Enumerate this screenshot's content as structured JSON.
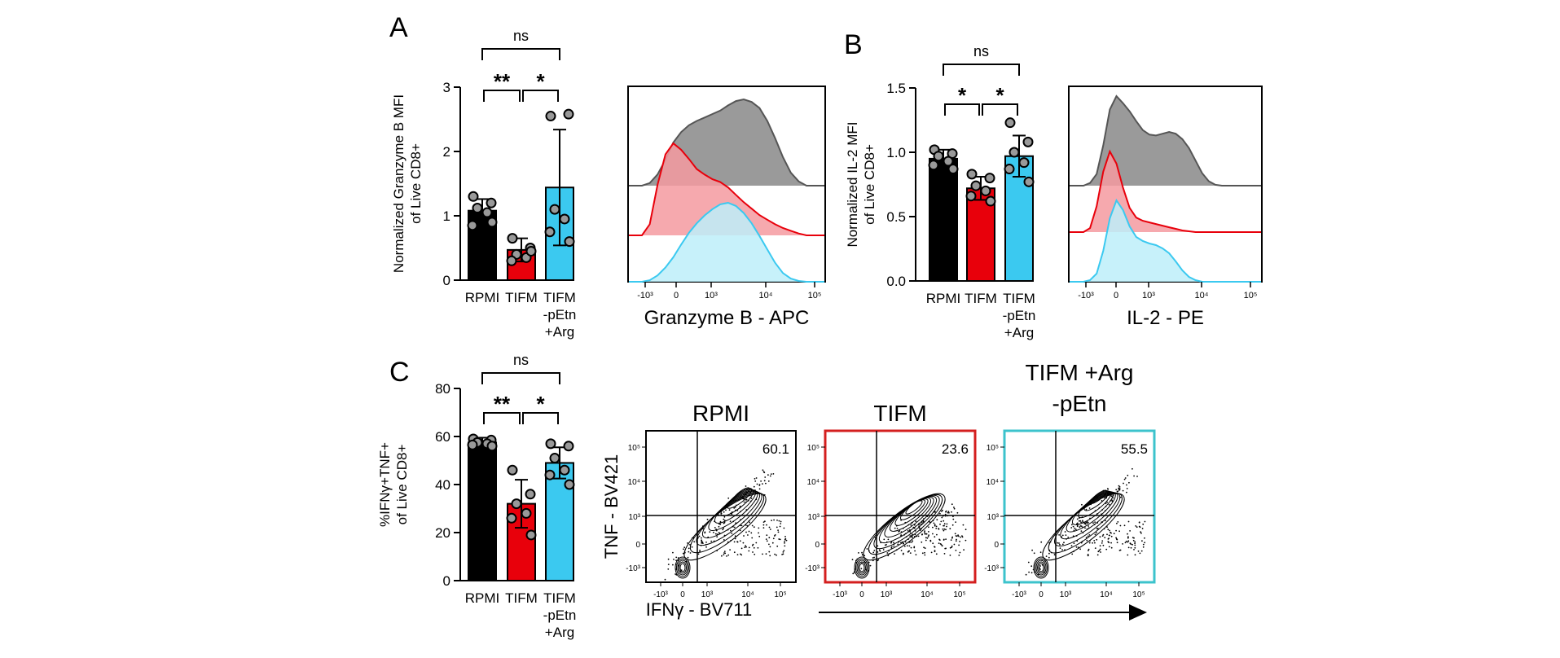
{
  "panels": {
    "A": {
      "letter": "A"
    },
    "B": {
      "letter": "B"
    },
    "C": {
      "letter": "C"
    }
  },
  "chart_data": [
    {
      "type": "bar",
      "panel": "A",
      "ylabel": [
        "Normalized Granzyme B MFI",
        "of Live CD8+"
      ],
      "ylim": [
        0,
        3
      ],
      "yticks": [
        "0",
        "1",
        "2",
        "3"
      ],
      "yticks_values": [
        0,
        1,
        2,
        3
      ],
      "categories": [
        [
          "RPMI"
        ],
        [
          "TIFM"
        ],
        [
          "TIFM",
          "-pEtn",
          "+Arg"
        ]
      ],
      "values": [
        1.08,
        0.47,
        1.44
      ],
      "errors": [
        0.18,
        0.18,
        0.9
      ],
      "colors": [
        "#000000",
        "#e8000b",
        "#3bc9f0"
      ],
      "points": [
        [
          1.3,
          1.2,
          1.12,
          1.05,
          0.85,
          0.9
        ],
        [
          0.65,
          0.5,
          0.4,
          0.35,
          0.3,
          0.45
        ],
        [
          2.55,
          2.58,
          1.1,
          0.95,
          0.75,
          0.6
        ]
      ],
      "brackets": [
        {
          "from": 0,
          "to": 1,
          "label": "**"
        },
        {
          "from": 1,
          "to": 2,
          "label": "*"
        },
        {
          "from": 0,
          "to": 2,
          "label": "ns"
        }
      ]
    },
    {
      "type": "area",
      "panel": "A",
      "xlabel": "Granzyme B - APC",
      "xticks": [
        "-10³",
        "0",
        "10³",
        "10⁴",
        "10⁵"
      ],
      "series": [
        {
          "color": "#555555",
          "fill": "#888888",
          "values": [
            0.0,
            0.03,
            0.13,
            0.3,
            0.5,
            0.62,
            0.7,
            0.75,
            0.79,
            0.83,
            0.87,
            0.93,
            0.98,
            1.0,
            0.97,
            0.9,
            0.75,
            0.55,
            0.33,
            0.15,
            0.05,
            0.0
          ]
        },
        {
          "color": "#e8000b",
          "fill": "#f49aa0",
          "values": [
            0.0,
            0.12,
            0.55,
            0.88,
            1.0,
            0.93,
            0.83,
            0.72,
            0.66,
            0.61,
            0.58,
            0.52,
            0.44,
            0.36,
            0.29,
            0.22,
            0.17,
            0.12,
            0.08,
            0.05,
            0.02,
            0.0
          ]
        },
        {
          "color": "#3bc9f0",
          "fill": "#bdeef9",
          "values": [
            0.0,
            0.02,
            0.08,
            0.18,
            0.31,
            0.47,
            0.62,
            0.74,
            0.84,
            0.92,
            0.98,
            1.0,
            0.96,
            0.87,
            0.74,
            0.58,
            0.41,
            0.24,
            0.11,
            0.04,
            0.01,
            0.0
          ]
        }
      ]
    },
    {
      "type": "bar",
      "panel": "B",
      "ylabel": [
        "Normalized IL-2 MFI",
        "of Live CD8+"
      ],
      "ylim": [
        0,
        1.5
      ],
      "yticks": [
        "0.0",
        "0.5",
        "1.0",
        "1.5"
      ],
      "yticks_values": [
        0,
        0.5,
        1.0,
        1.5
      ],
      "categories": [
        [
          "RPMI"
        ],
        [
          "TIFM"
        ],
        [
          "TIFM",
          "-pEtn",
          "+Arg"
        ]
      ],
      "values": [
        0.95,
        0.72,
        0.97
      ],
      "errors": [
        0.07,
        0.09,
        0.16
      ],
      "colors": [
        "#000000",
        "#e8000b",
        "#3bc9f0"
      ],
      "points": [
        [
          1.02,
          0.99,
          0.97,
          0.93,
          0.9,
          0.87
        ],
        [
          0.83,
          0.8,
          0.74,
          0.7,
          0.66,
          0.62
        ],
        [
          1.23,
          1.08,
          1.0,
          0.92,
          0.87,
          0.77
        ]
      ],
      "brackets": [
        {
          "from": 0,
          "to": 1,
          "label": "*"
        },
        {
          "from": 1,
          "to": 2,
          "label": "*"
        },
        {
          "from": 0,
          "to": 2,
          "label": "ns"
        }
      ]
    },
    {
      "type": "area",
      "panel": "B",
      "xlabel": "IL-2 - PE",
      "xticks": [
        "-10³",
        "0",
        "10³",
        "10⁴",
        "10⁵"
      ],
      "series": [
        {
          "color": "#555555",
          "fill": "#888888",
          "values": [
            0.0,
            0.03,
            0.13,
            0.45,
            0.85,
            1.0,
            0.92,
            0.83,
            0.72,
            0.62,
            0.57,
            0.56,
            0.58,
            0.6,
            0.58,
            0.52,
            0.42,
            0.28,
            0.14,
            0.05,
            0.01,
            0.0
          ]
        },
        {
          "color": "#e8000b",
          "fill": "#f49aa0",
          "values": [
            0.0,
            0.05,
            0.32,
            0.75,
            1.0,
            0.85,
            0.55,
            0.3,
            0.18,
            0.14,
            0.12,
            0.1,
            0.08,
            0.06,
            0.04,
            0.02,
            0.01,
            0.0,
            0.0,
            0.0,
            0.0,
            0.0
          ]
        },
        {
          "color": "#3bc9f0",
          "fill": "#bdeef9",
          "values": [
            0.0,
            0.02,
            0.1,
            0.38,
            0.78,
            1.0,
            0.88,
            0.68,
            0.55,
            0.5,
            0.47,
            0.45,
            0.41,
            0.35,
            0.25,
            0.14,
            0.06,
            0.02,
            0.0,
            0.0,
            0.0,
            0.0
          ]
        }
      ]
    },
    {
      "type": "bar",
      "panel": "C",
      "ylabel": [
        "%IFNγ+TNF+",
        "of Live CD8+"
      ],
      "ylim": [
        0,
        80
      ],
      "yticks": [
        "0",
        "20",
        "40",
        "60",
        "80"
      ],
      "yticks_values": [
        0,
        20,
        40,
        60,
        80
      ],
      "categories": [
        [
          "RPMI"
        ],
        [
          "TIFM"
        ],
        [
          "TIFM",
          "-pEtn",
          "+Arg"
        ]
      ],
      "values": [
        57.5,
        32,
        49
      ],
      "errors": [
        2,
        10,
        6.5
      ],
      "colors": [
        "#000000",
        "#e8000b",
        "#3bc9f0"
      ],
      "points": [
        [
          59,
          58.5,
          57.5,
          57,
          56.5,
          56
        ],
        [
          46,
          36,
          32,
          28,
          26,
          19
        ],
        [
          57,
          56,
          51,
          46,
          44,
          40
        ]
      ],
      "brackets": [
        {
          "from": 0,
          "to": 1,
          "label": "**"
        },
        {
          "from": 1,
          "to": 2,
          "label": "*"
        },
        {
          "from": 0,
          "to": 2,
          "label": "ns"
        }
      ]
    },
    {
      "type": "scatter",
      "panel": "C",
      "xlabel": "IFNγ  - BV711",
      "ylabel": "TNF  - BV421",
      "xticks": [
        "-10³",
        "0",
        "10³",
        "10⁴",
        "10⁵"
      ],
      "yticks": [
        "-10³",
        "0",
        "10³",
        "10⁴",
        "10⁵"
      ],
      "plots": [
        {
          "title": [
            "RPMI"
          ],
          "quadrant_value": "60.1",
          "border": "#000000"
        },
        {
          "title": [
            "TIFM"
          ],
          "quadrant_value": "23.6",
          "border": "#d41f1f"
        },
        {
          "title": [
            "TIFM +Arg",
            "-pEtn"
          ],
          "quadrant_value": "55.5",
          "border": "#3cc3cc"
        }
      ]
    }
  ]
}
